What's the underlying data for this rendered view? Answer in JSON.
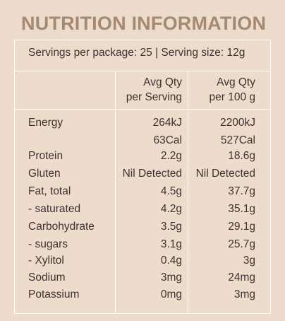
{
  "title": "NUTRITION INFORMATION",
  "servings_line": "Servings per package: 25 | Serving size: 12g",
  "headers": {
    "per_serving": [
      "Avg Qty",
      "per Serving"
    ],
    "per_100g": [
      "Avg Qty",
      "per 100 g"
    ]
  },
  "rows": [
    {
      "label": "Energy",
      "serving": "264kJ",
      "per100": "2200kJ"
    },
    {
      "label": "",
      "serving": "63Cal",
      "per100": "527Cal"
    },
    {
      "label": "Protein",
      "serving": "2.2g",
      "per100": "18.6g"
    },
    {
      "label": "Gluten",
      "serving": "Nil Detected",
      "per100": "Nil Detected"
    },
    {
      "label": "Fat, total",
      "serving": "4.5g",
      "per100": "37.7g"
    },
    {
      "label": "- saturated",
      "serving": "4.2g",
      "per100": "35.1g"
    },
    {
      "label": "Carbohydrate",
      "serving": "3.5g",
      "per100": "29.1g"
    },
    {
      "label": "- sugars",
      "serving": "3.1g",
      "per100": "25.7g"
    },
    {
      "label": "- Xylitol",
      "serving": "0.4g",
      "per100": "3g"
    },
    {
      "label": "Sodium",
      "serving": "3mg",
      "per100": "24mg"
    },
    {
      "label": "Potassium",
      "serving": "0mg",
      "per100": "3mg"
    }
  ]
}
